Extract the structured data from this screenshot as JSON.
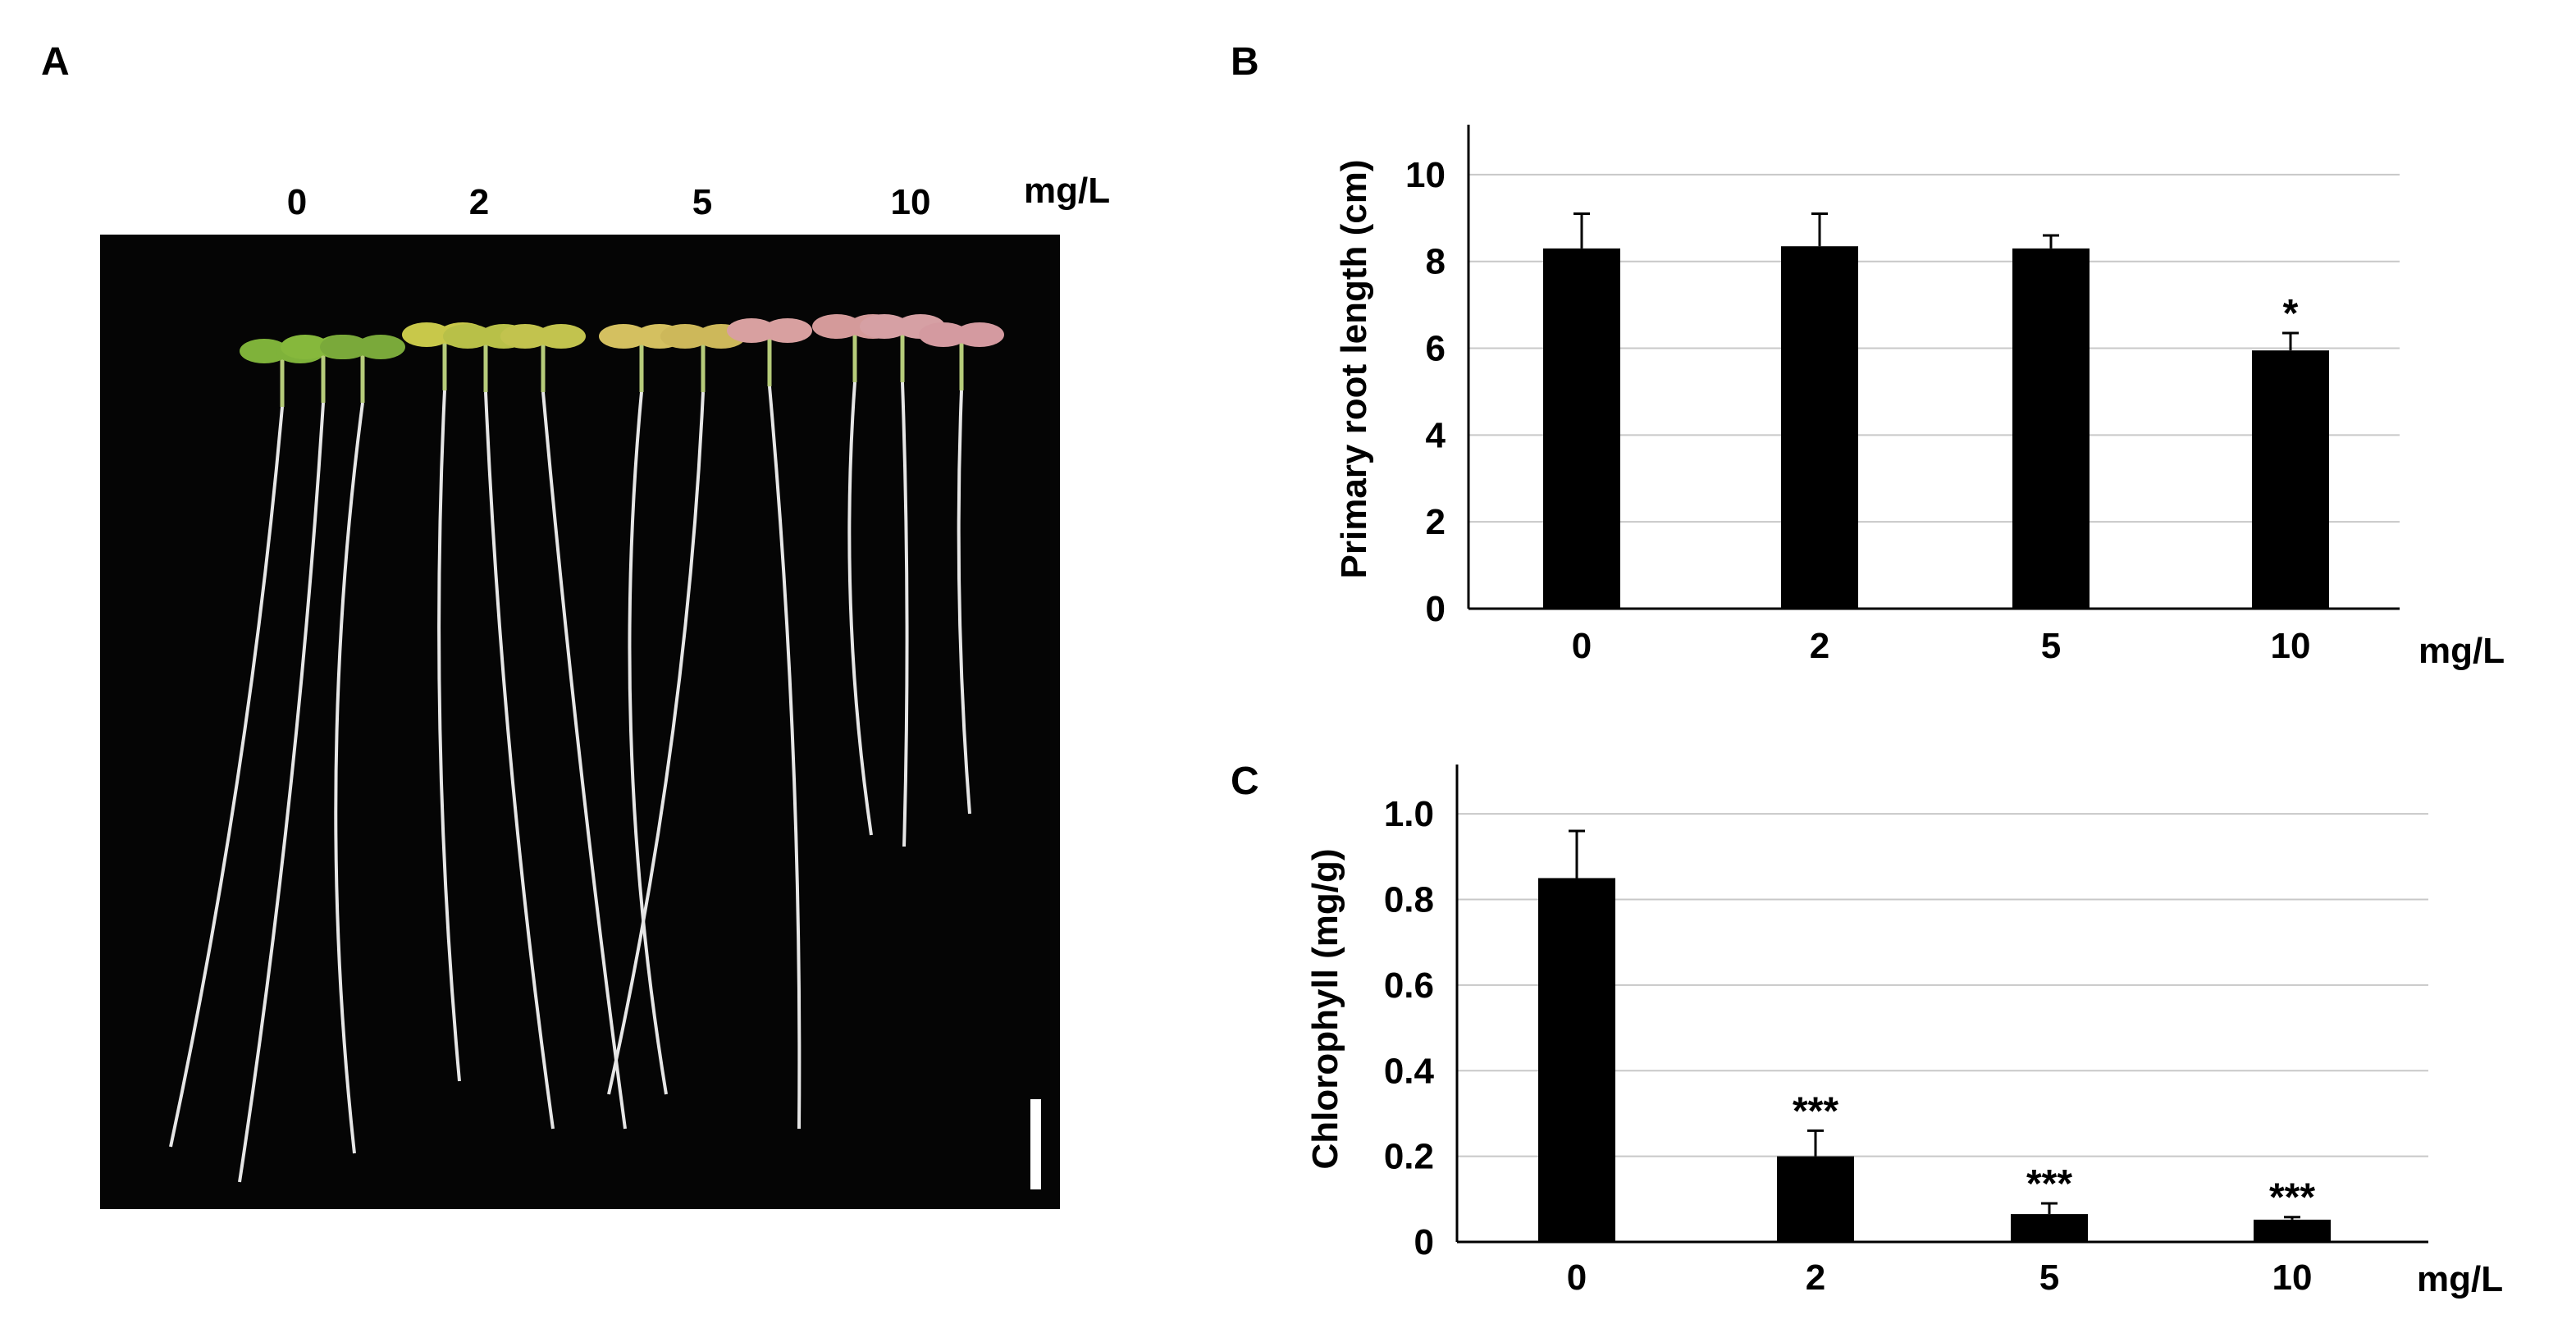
{
  "panelA": {
    "letter": "A",
    "concentrations": [
      "0",
      "2",
      "5",
      "10"
    ],
    "unit": "mg/L"
  },
  "panelB": {
    "letter": "B"
  },
  "panelC": {
    "letter": "C"
  },
  "chart_data": [
    {
      "type": "bar",
      "panel": "B",
      "categories": [
        "0",
        "2",
        "5",
        "10"
      ],
      "values": [
        8.3,
        8.35,
        8.3,
        5.95
      ],
      "errors": [
        0.8,
        0.75,
        0.3,
        0.4
      ],
      "annotations": [
        "",
        "",
        "",
        "*"
      ],
      "ylabel": "Primary root length (cm)",
      "xunit": "mg/L",
      "ylim": [
        0,
        11
      ],
      "yticks": [
        "0",
        "2",
        "4",
        "6",
        "8",
        "10"
      ],
      "grid": true,
      "bar_color": "#000000"
    },
    {
      "type": "bar",
      "panel": "C",
      "categories": [
        "0",
        "2",
        "5",
        "10"
      ],
      "values": [
        0.85,
        0.2,
        0.065,
        0.052
      ],
      "errors": [
        0.11,
        0.06,
        0.025,
        0.006
      ],
      "annotations": [
        "",
        "***",
        "***",
        "***"
      ],
      "ylabel": "Chlorophyll (mg/g)",
      "xunit": "mg/L",
      "ylim": [
        0,
        1.1
      ],
      "yticks": [
        "0",
        "0.2",
        "0.4",
        "0.6",
        "0.8",
        "1.0"
      ],
      "grid": true,
      "bar_color": "#000000"
    }
  ]
}
